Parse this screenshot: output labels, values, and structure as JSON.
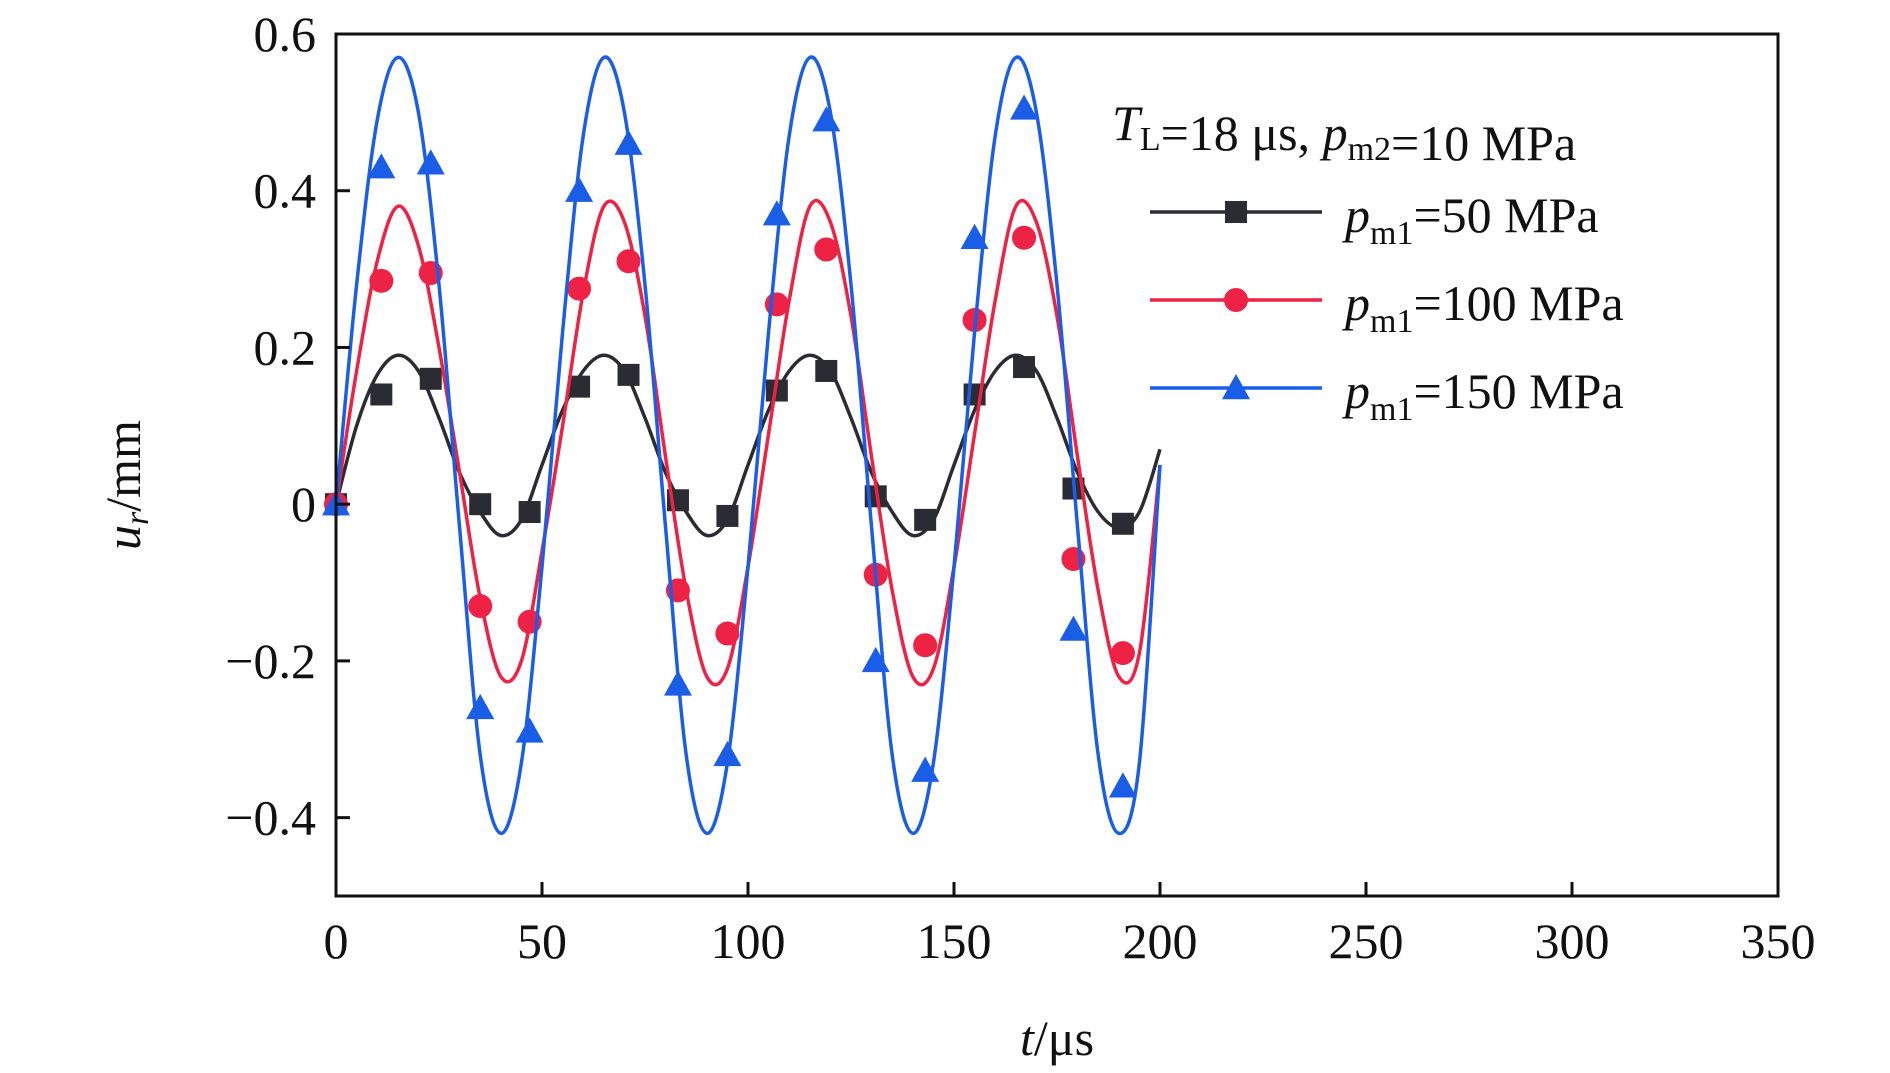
{
  "chart_data": {
    "type": "line",
    "xlabel": {
      "var": "t",
      "unit": "/μs"
    },
    "ylabel": {
      "var": "u",
      "sub": "r",
      "unit": "/mm"
    },
    "xlim": [
      0,
      350
    ],
    "ylim": [
      -0.5,
      0.6
    ],
    "xticks": [
      0,
      50,
      100,
      150,
      200,
      250,
      300,
      350
    ],
    "xtick_labels": [
      "0",
      "50",
      "100",
      "150",
      "200",
      "250",
      "300",
      "350"
    ],
    "yticks": [
      -0.4,
      -0.2,
      0,
      0.2,
      0.4,
      0.6
    ],
    "ytick_labels": [
      "−0.4",
      "−0.2",
      "0",
      "0.2",
      "0.4",
      "0.6"
    ],
    "grid": false,
    "legend_position": "top-right",
    "legend_title": {
      "parts": [
        {
          "t": "T",
          "style": "italic"
        },
        {
          "t": "L",
          "style": "sub"
        },
        {
          "t": "=18 μs, "
        },
        {
          "t": "p",
          "style": "italic"
        },
        {
          "t": "m2",
          "style": "sub"
        },
        {
          "t": "=10 MPa"
        }
      ]
    },
    "series": [
      {
        "name": "pm1=50 MPa",
        "label": {
          "var": "p",
          "sub": "m1",
          "rest": "=50 MPa"
        },
        "color": "#2b2b33",
        "marker": "square",
        "x": [
          0,
          5,
          10,
          15,
          20,
          25,
          30,
          35,
          40,
          45,
          50,
          55,
          60,
          65,
          70,
          75,
          80,
          85,
          90,
          95,
          100,
          105,
          110,
          115,
          120,
          125,
          130,
          135,
          140,
          145,
          150,
          155,
          160,
          165,
          170,
          175,
          180,
          185,
          190,
          195,
          200
        ],
        "y": [
          0,
          0.1,
          0.165,
          0.19,
          0.17,
          0.11,
          0.04,
          -0.01,
          -0.04,
          -0.02,
          0.05,
          0.12,
          0.17,
          0.19,
          0.17,
          0.11,
          0.04,
          -0.01,
          -0.04,
          -0.02,
          0.05,
          0.12,
          0.17,
          0.19,
          0.17,
          0.11,
          0.04,
          -0.01,
          -0.04,
          -0.02,
          0.05,
          0.12,
          0.17,
          0.19,
          0.17,
          0.11,
          0.04,
          -0.01,
          -0.03,
          -0.01,
          0.07
        ],
        "markers_x": [
          0,
          11,
          23,
          35,
          47,
          59,
          71,
          83,
          95,
          107,
          119,
          131,
          143,
          155,
          167,
          179,
          191
        ],
        "markers_y": [
          0,
          0.14,
          0.16,
          0.0,
          -0.01,
          0.15,
          0.165,
          0.005,
          -0.015,
          0.145,
          0.17,
          0.01,
          -0.02,
          0.14,
          0.175,
          0.02,
          -0.025
        ]
      },
      {
        "name": "pm1=100 MPa",
        "label": {
          "var": "p",
          "sub": "m1",
          "rest": "=100 MPa"
        },
        "color": "#ee2244",
        "marker": "circle",
        "x": [
          0,
          5,
          10,
          15,
          20,
          25,
          30,
          35,
          40,
          45,
          50,
          55,
          60,
          65,
          70,
          75,
          80,
          85,
          90,
          95,
          100,
          105,
          110,
          115,
          120,
          125,
          130,
          135,
          140,
          145,
          150,
          155,
          160,
          165,
          170,
          175,
          180,
          185,
          190,
          195,
          200
        ],
        "y": [
          0,
          0.17,
          0.31,
          0.38,
          0.33,
          0.2,
          0.04,
          -0.12,
          -0.22,
          -0.2,
          -0.06,
          0.1,
          0.27,
          0.38,
          0.36,
          0.24,
          0.06,
          -0.11,
          -0.22,
          -0.21,
          -0.08,
          0.09,
          0.26,
          0.38,
          0.36,
          0.24,
          0.06,
          -0.11,
          -0.22,
          -0.21,
          -0.08,
          0.09,
          0.26,
          0.38,
          0.36,
          0.24,
          0.06,
          -0.11,
          -0.22,
          -0.19,
          0.05
        ],
        "markers_x": [
          0,
          11,
          23,
          35,
          47,
          59,
          71,
          83,
          95,
          107,
          119,
          131,
          143,
          155,
          167,
          179,
          191
        ],
        "markers_y": [
          0,
          0.285,
          0.295,
          -0.13,
          -0.15,
          0.275,
          0.31,
          -0.11,
          -0.165,
          0.255,
          0.325,
          -0.09,
          -0.18,
          0.235,
          0.34,
          -0.07,
          -0.19
        ]
      },
      {
        "name": "pm1=150 MPa",
        "label": {
          "var": "p",
          "sub": "m1",
          "rest": "=150 MPa"
        },
        "color": "#1a5ee8",
        "marker": "triangle",
        "x": [
          0,
          5,
          10,
          15,
          20,
          25,
          30,
          35,
          40,
          45,
          50,
          55,
          60,
          65,
          70,
          75,
          80,
          85,
          90,
          95,
          100,
          105,
          110,
          115,
          120,
          125,
          130,
          135,
          140,
          145,
          150,
          155,
          160,
          165,
          170,
          175,
          180,
          185,
          190,
          195,
          200
        ],
        "y": [
          0,
          0.28,
          0.49,
          0.57,
          0.5,
          0.28,
          -0.03,
          -0.32,
          -0.42,
          -0.33,
          -0.08,
          0.22,
          0.47,
          0.57,
          0.5,
          0.28,
          -0.03,
          -0.32,
          -0.42,
          -0.33,
          -0.08,
          0.22,
          0.47,
          0.57,
          0.5,
          0.28,
          -0.03,
          -0.32,
          -0.42,
          -0.33,
          -0.08,
          0.22,
          0.47,
          0.57,
          0.5,
          0.28,
          -0.03,
          -0.32,
          -0.42,
          -0.33,
          0.05
        ],
        "markers_x": [
          0,
          11,
          23,
          35,
          47,
          59,
          71,
          83,
          95,
          107,
          119,
          131,
          143,
          155,
          167,
          179,
          191
        ],
        "markers_y": [
          0,
          0.43,
          0.435,
          -0.26,
          -0.29,
          0.4,
          0.46,
          -0.23,
          -0.32,
          0.37,
          0.49,
          -0.2,
          -0.34,
          0.34,
          0.505,
          -0.16,
          -0.36
        ]
      }
    ]
  }
}
